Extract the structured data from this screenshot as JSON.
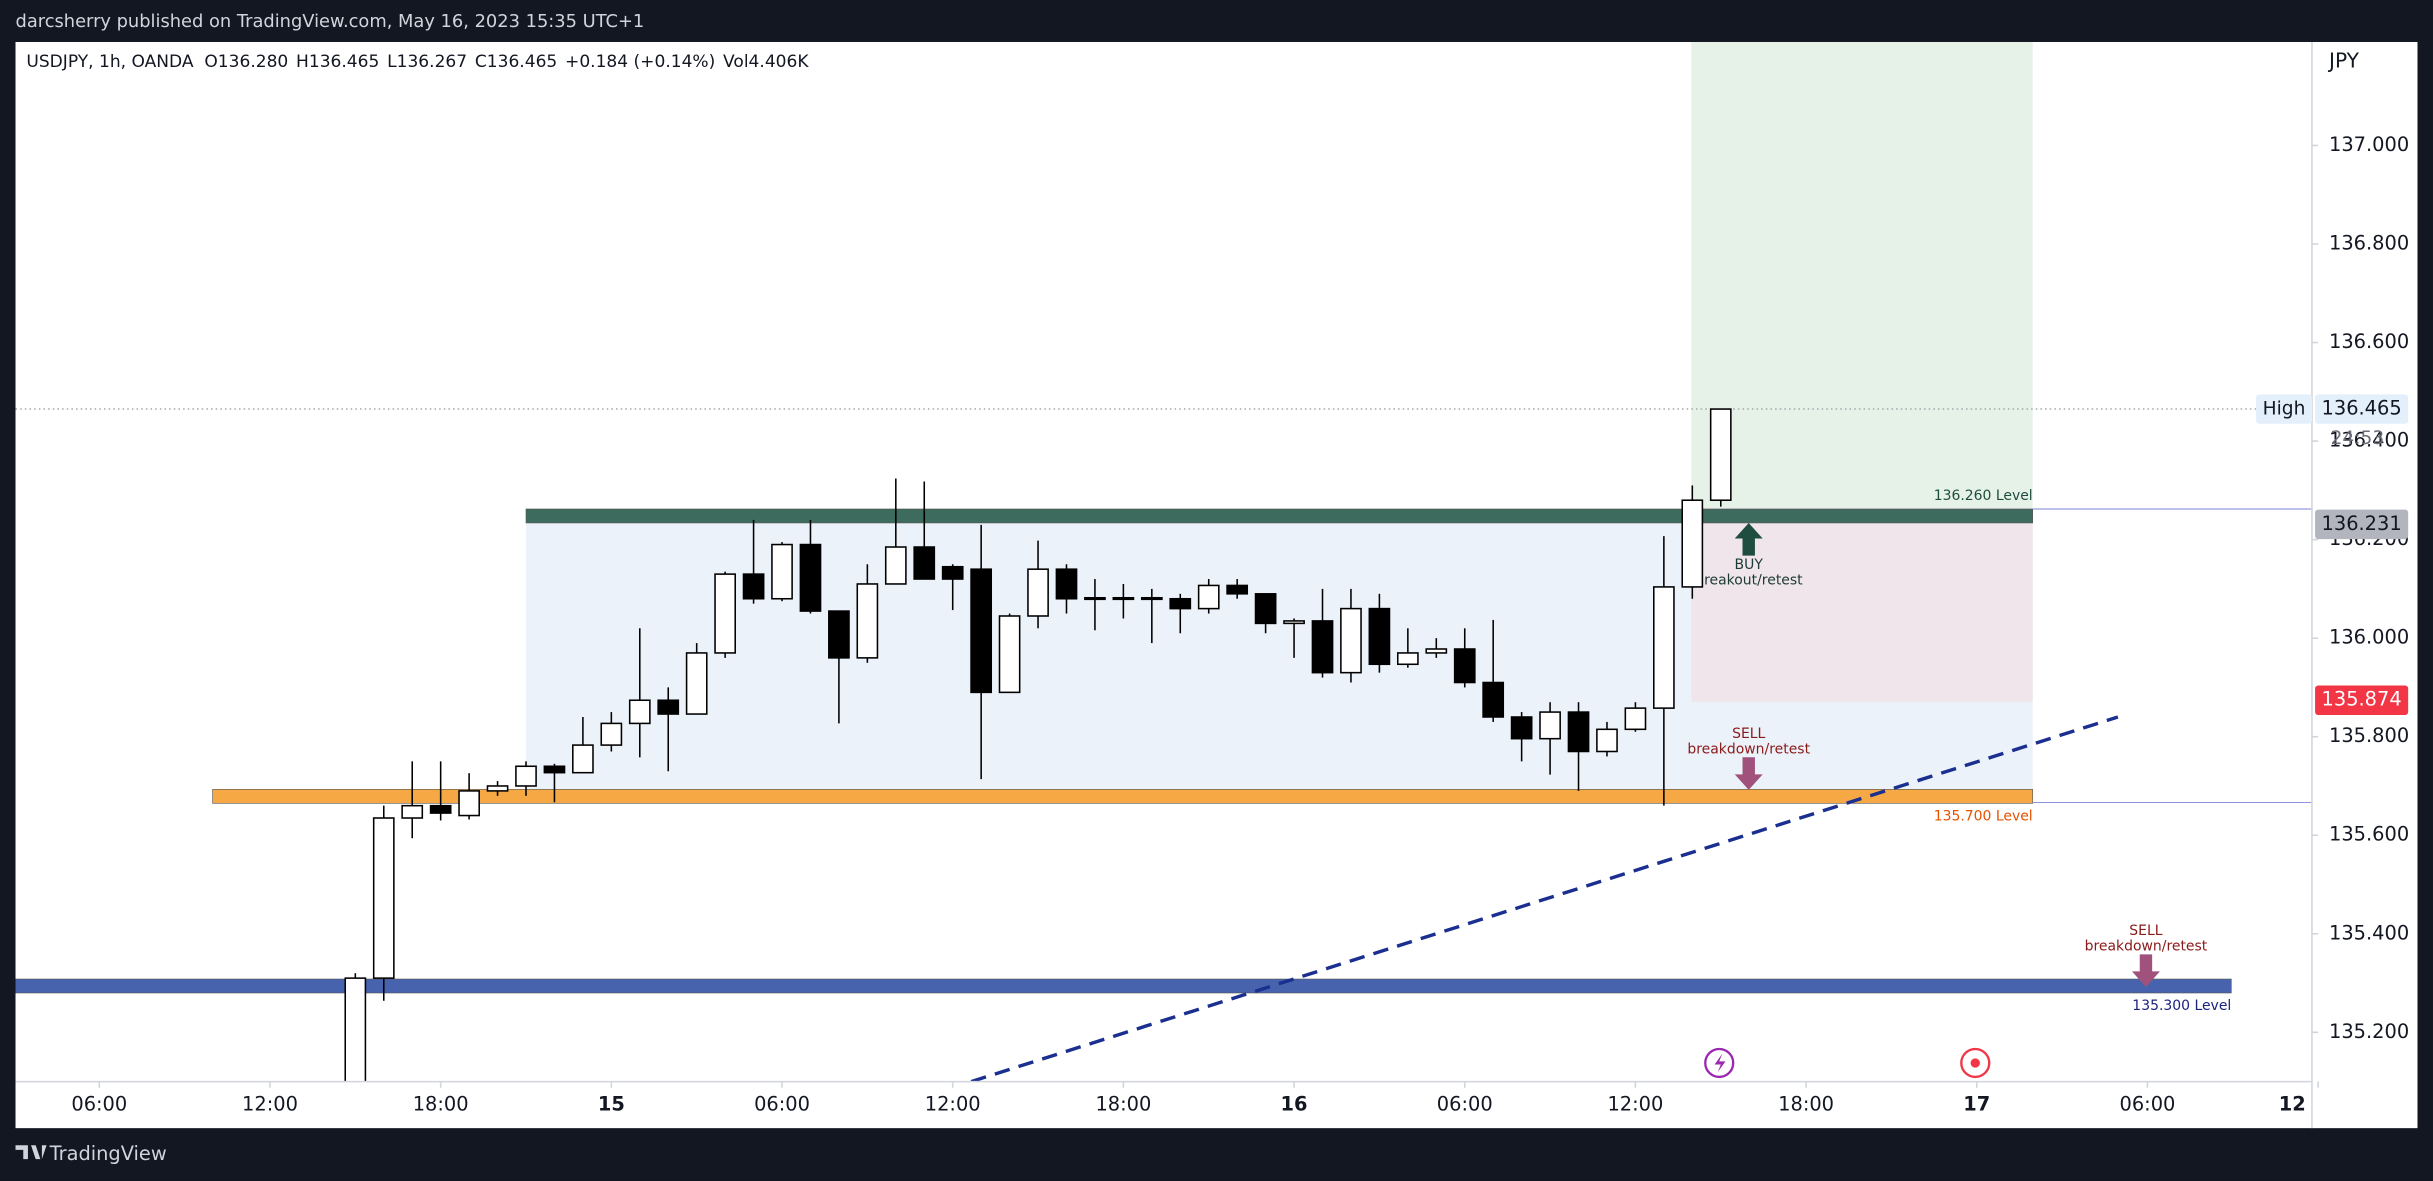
{
  "header": "darcsherry published on TradingView.com, May 16, 2023 15:35 UTC+1",
  "footer": "TradingView",
  "chart_data": {
    "type": "candlestick",
    "legend": [
      "USDJPY, 1h, OANDA",
      "O136.280",
      "H136.465",
      "L136.267",
      "C136.465",
      "+0.184 (+0.14%)",
      "Vol4.406K"
    ],
    "currency": "JPY",
    "categories": [
      null,
      null,
      null,
      "06:00",
      null,
      null,
      null,
      null,
      null,
      "12:00",
      null,
      null,
      null,
      null,
      null,
      "18:00",
      null,
      null,
      null,
      null,
      null,
      "15",
      null,
      null,
      null,
      null,
      null,
      "06:00",
      null,
      null,
      null,
      null,
      null,
      "12:00",
      null,
      null,
      null,
      null,
      null,
      "18:00",
      null,
      null,
      null,
      null,
      null,
      "16",
      null,
      null,
      null,
      null,
      null,
      "06:00",
      null,
      null,
      null,
      null,
      null,
      "12:00",
      null,
      null,
      null,
      null,
      null,
      "18:00",
      null,
      null,
      null,
      null,
      null,
      "17",
      null,
      null,
      null,
      null,
      null,
      "06:00",
      null,
      null,
      null,
      null,
      null,
      "12"
    ],
    "open": [
      null,
      null,
      null,
      null,
      null,
      null,
      null,
      null,
      null,
      null,
      null,
      null,
      135.09,
      135.31,
      135.635,
      135.66,
      135.64,
      135.69,
      135.7,
      135.74,
      135.727,
      135.783,
      135.827,
      135.874,
      135.846,
      135.97,
      136.13,
      136.08,
      136.19,
      136.055,
      135.96,
      136.11,
      136.185,
      136.145,
      136.14,
      135.89,
      136.045,
      136.14,
      136.082,
      136.08,
      136.082,
      136.08,
      136.06,
      136.107,
      136.09,
      136.03,
      136.035,
      135.93,
      136.06,
      135.947,
      135.97,
      135.978,
      135.91,
      135.84,
      135.796,
      135.85,
      135.77,
      135.815,
      135.858,
      136.104,
      136.28,
      null,
      null,
      null,
      null,
      null,
      null,
      null,
      null,
      null,
      null,
      null,
      null,
      null,
      null,
      null,
      null,
      null,
      null,
      null,
      null,
      null
    ],
    "high": [
      null,
      null,
      null,
      null,
      null,
      null,
      null,
      null,
      null,
      null,
      null,
      null,
      135.32,
      135.66,
      135.75,
      135.75,
      135.726,
      135.71,
      135.75,
      135.745,
      135.84,
      135.85,
      136.02,
      135.9,
      135.99,
      136.135,
      136.24,
      136.195,
      136.24,
      136.055,
      136.15,
      136.324,
      136.318,
      136.15,
      136.23,
      136.05,
      136.198,
      136.15,
      136.12,
      136.11,
      136.1,
      136.09,
      136.12,
      136.12,
      136.09,
      136.04,
      136.1,
      136.1,
      136.09,
      136.02,
      136.0,
      136.02,
      136.037,
      135.85,
      135.87,
      135.87,
      135.83,
      135.87,
      136.207,
      136.31,
      136.465,
      null,
      null,
      null,
      null,
      null,
      null,
      null,
      null,
      null,
      null,
      null,
      null,
      null,
      null,
      null,
      null,
      null,
      null,
      null,
      null,
      null
    ],
    "low": [
      null,
      null,
      null,
      null,
      null,
      null,
      null,
      null,
      null,
      null,
      null,
      null,
      135.08,
      135.264,
      135.594,
      135.63,
      135.632,
      135.68,
      135.68,
      135.667,
      135.727,
      135.77,
      135.758,
      135.73,
      135.846,
      135.96,
      136.07,
      136.075,
      136.05,
      135.827,
      135.95,
      136.11,
      136.12,
      136.057,
      135.714,
      135.89,
      136.02,
      136.05,
      136.016,
      136.04,
      135.99,
      136.01,
      136.05,
      136.08,
      136.01,
      135.96,
      135.92,
      135.91,
      135.93,
      135.94,
      135.96,
      135.9,
      135.83,
      135.75,
      135.723,
      135.69,
      135.76,
      135.81,
      135.66,
      136.08,
      136.267,
      null,
      null,
      null,
      null,
      null,
      null,
      null,
      null,
      null,
      null,
      null,
      null,
      null,
      null,
      null,
      null,
      null,
      null,
      null,
      null,
      null
    ],
    "close": [
      null,
      null,
      null,
      null,
      null,
      null,
      null,
      null,
      null,
      null,
      null,
      null,
      135.31,
      135.635,
      135.66,
      135.645,
      135.69,
      135.7,
      135.74,
      135.727,
      135.783,
      135.827,
      135.874,
      135.846,
      135.97,
      136.13,
      136.08,
      136.19,
      136.055,
      135.96,
      136.11,
      136.185,
      136.12,
      136.12,
      135.89,
      136.045,
      136.14,
      136.08,
      136.08,
      136.082,
      136.08,
      136.06,
      136.107,
      136.09,
      136.03,
      136.035,
      135.93,
      136.06,
      135.947,
      135.97,
      135.978,
      135.91,
      135.84,
      135.796,
      135.85,
      135.77,
      135.815,
      135.858,
      136.104,
      136.28,
      136.465,
      null,
      null,
      null,
      null,
      null,
      null,
      null,
      null,
      null,
      null,
      null,
      null,
      null,
      null,
      null,
      null,
      null,
      null,
      null,
      null,
      null
    ],
    "up_color": "#ffffff",
    "down_color": "#000000",
    "border_color": "#000000",
    "ylim": [
      135.1,
      137.21
    ],
    "yticks": [
      {
        "value": 135.2,
        "label": "135.200"
      },
      {
        "value": 135.4,
        "label": "135.400"
      },
      {
        "value": 135.6,
        "label": "135.600"
      },
      {
        "value": 135.8,
        "label": "135.800"
      },
      {
        "value": 136,
        "label": "136.000"
      },
      {
        "value": 136.2,
        "label": "136.200"
      },
      {
        "value": 136.4,
        "label": "136.400"
      },
      {
        "value": 136.6,
        "label": "136.600"
      },
      {
        "value": 136.8,
        "label": "136.800"
      },
      {
        "value": 137,
        "label": "137.000"
      }
    ],
    "grid": false,
    "levels": [
      {
        "value": 136.248,
        "label": "136.260 Level",
        "color": "#3d6b5e",
        "label_color": "#1e4d40"
      },
      {
        "value": 135.679,
        "label": "135.700 Level",
        "color": "#f6a844",
        "label_color": "#e65100"
      },
      {
        "value": 135.294,
        "label": "135.300 Level",
        "color": "#4763ad",
        "label_color": "#1a237e"
      }
    ],
    "long_position": {
      "entry": 136.264,
      "stop": 135.871
    },
    "trendline": {
      "values": [
        135.1,
        135.84
      ],
      "color": "#1a2f8f"
    },
    "annotations": [
      {
        "text": [
          "BUY",
          "reakout/retest"
        ],
        "color": "#1e3a34",
        "arrow_color": "#1f4d40",
        "arrow": "up"
      },
      {
        "text": [
          "SELL",
          "breakdown/retest"
        ],
        "color": "#8b1a1a",
        "arrow_color": "#a0527d",
        "arrow": "down"
      },
      {
        "text": [
          "SELL",
          "breakdown/retest"
        ],
        "color": "#8b1a1a",
        "arrow_color": "#a0527d",
        "arrow": "down"
      }
    ],
    "price_labels": [
      {
        "value": 136.465,
        "label": "136.465",
        "tag": "High",
        "countdown": "24:53",
        "bg": "#e3effb",
        "fg": "#131722"
      },
      {
        "value": 136.231,
        "label": "136.231",
        "bg": "#b2b5be",
        "fg": "#131722"
      },
      {
        "value": 135.874,
        "label": "135.874",
        "bg": "#f23645",
        "fg": "#ffffff"
      }
    ]
  }
}
